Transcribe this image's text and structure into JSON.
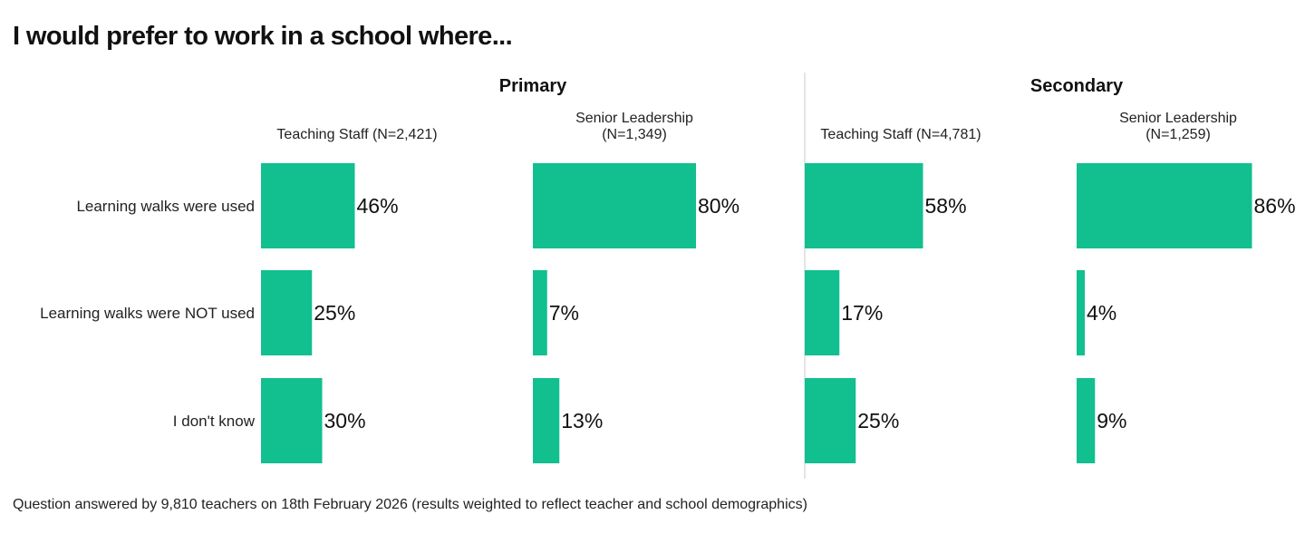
{
  "header": {
    "title": "I would prefer to work in a school where..."
  },
  "footnote": "Question answered by 9,810 teachers on 18th February 2026 (results weighted to reflect teacher and school demographics)",
  "chart_data": {
    "type": "bar",
    "orientation": "horizontal",
    "title": "I would prefer to work in a school where...",
    "bar_color": "#12bf8f",
    "divider_color": "#c8c8c8",
    "xlim": [
      0,
      100
    ],
    "value_format": "percent",
    "categories": [
      "Learning walks were used",
      "Learning walks were NOT used",
      "I don't know"
    ],
    "groups": [
      {
        "name": "Primary",
        "panels": [
          {
            "label_lines": [
              "Teaching Staff (N=2,421)"
            ],
            "values": [
              46,
              25,
              30
            ]
          },
          {
            "label_lines": [
              "Senior Leadership",
              "(N=1,349)"
            ],
            "values": [
              80,
              7,
              13
            ]
          }
        ]
      },
      {
        "name": "Secondary",
        "panels": [
          {
            "label_lines": [
              "Teaching Staff (N=4,781)"
            ],
            "values": [
              58,
              17,
              25
            ]
          },
          {
            "label_lines": [
              "Senior Leadership",
              "(N=1,259)"
            ],
            "values": [
              86,
              4,
              9
            ]
          }
        ]
      }
    ]
  }
}
